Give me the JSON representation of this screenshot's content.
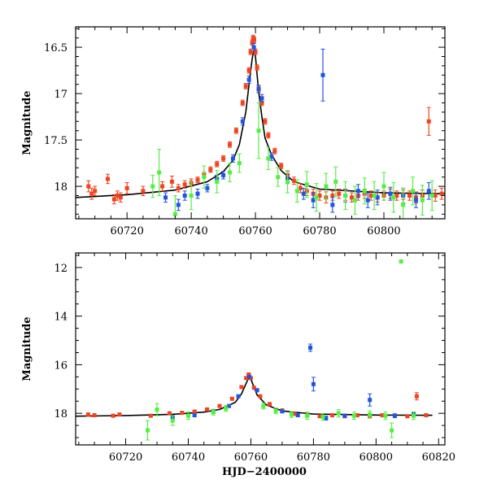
{
  "colors": {
    "blue": "#2255dd",
    "green": "#55ee44",
    "red": "#ee4422",
    "model": "#000000"
  },
  "chart_data": [
    {
      "type": "scatter",
      "title": "",
      "xlabel": "",
      "ylabel": "Magnitude",
      "xlim": [
        60704,
        60819
      ],
      "ylim": [
        18.35,
        16.28
      ],
      "y_inverted": true,
      "grid": false,
      "x_ticks": [
        60720,
        60740,
        60760,
        60780,
        60800
      ],
      "x_tick_labels": [
        "60720",
        "60740",
        "60760",
        "60780",
        "60800"
      ],
      "y_ticks": [
        16.5,
        17,
        17.5,
        18
      ],
      "y_tick_labels": [
        "16.5",
        "17",
        "17.5",
        "18"
      ],
      "model": {
        "x": [
          60704,
          60720,
          60735,
          60745,
          60750,
          60753,
          60755,
          60757,
          60758,
          60759,
          60759.6,
          60760,
          60761,
          60762,
          60763,
          60765,
          60768,
          60772,
          60780,
          60800,
          60819
        ],
        "y": [
          18.12,
          18.09,
          18.04,
          17.95,
          17.84,
          17.72,
          17.55,
          17.2,
          16.9,
          16.62,
          16.52,
          16.6,
          16.98,
          17.25,
          17.48,
          17.66,
          17.83,
          17.95,
          18.03,
          18.07,
          18.08
        ]
      },
      "series": [
        {
          "color": "#ee4422",
          "x": [
            60708,
            60709,
            60710,
            60714,
            60716,
            60717,
            60718,
            60720,
            60725,
            60731,
            60734,
            60736,
            60738,
            60740,
            60742,
            60744,
            60746,
            60748,
            60750,
            60752,
            60754,
            60756,
            60757,
            60758,
            60758.5,
            60759,
            60759.3,
            60759.6,
            60760,
            60760.5,
            60761,
            60762,
            60763,
            60764,
            60766,
            60768,
            60770,
            60772,
            60774,
            60776,
            60778,
            60780,
            60782,
            60784,
            60786,
            60788,
            60790,
            60792,
            60794,
            60796,
            60798,
            60800,
            60802,
            60804,
            60806,
            60808,
            60810,
            60812,
            60814,
            60816,
            60818
          ],
          "y": [
            18.0,
            18.08,
            18.05,
            17.92,
            18.14,
            18.1,
            18.12,
            18.02,
            18.05,
            18.0,
            17.95,
            18.02,
            17.98,
            17.96,
            17.93,
            17.88,
            17.82,
            17.76,
            17.7,
            17.55,
            17.4,
            17.1,
            16.92,
            16.75,
            16.55,
            16.45,
            16.4,
            16.42,
            16.55,
            16.72,
            16.95,
            17.1,
            17.3,
            17.45,
            17.62,
            17.78,
            17.88,
            17.94,
            18.02,
            18.05,
            18.08,
            18.1,
            18.12,
            18.1,
            18.08,
            18.1,
            18.12,
            18.1,
            18.08,
            18.1,
            18.12,
            18.1,
            18.08,
            18.1,
            18.09,
            18.1,
            18.12,
            18.1,
            17.3,
            18.1,
            18.08
          ],
          "err": [
            0.06,
            0.06,
            0.05,
            0.05,
            0.05,
            0.05,
            0.05,
            0.06,
            0.05,
            0.05,
            0.06,
            0.04,
            0.04,
            0.04,
            0.03,
            0.03,
            0.03,
            0.03,
            0.03,
            0.03,
            0.03,
            0.03,
            0.03,
            0.03,
            0.03,
            0.03,
            0.03,
            0.03,
            0.03,
            0.03,
            0.03,
            0.03,
            0.03,
            0.03,
            0.03,
            0.03,
            0.04,
            0.04,
            0.05,
            0.05,
            0.05,
            0.05,
            0.06,
            0.05,
            0.05,
            0.05,
            0.05,
            0.05,
            0.05,
            0.05,
            0.05,
            0.05,
            0.05,
            0.05,
            0.05,
            0.05,
            0.06,
            0.06,
            0.15,
            0.06,
            0.06
          ]
        },
        {
          "color": "#2255dd",
          "x": [
            60732,
            60736,
            60738,
            60742,
            60745,
            60748,
            60750,
            60753,
            60756,
            60758,
            60759.5,
            60761,
            60762,
            60765,
            60770,
            60775,
            60778,
            60781,
            60784,
            60788,
            60792,
            60795,
            60798,
            60802,
            60806,
            60810,
            60814
          ],
          "y": [
            18.12,
            18.2,
            18.1,
            18.08,
            18.02,
            17.92,
            17.88,
            17.7,
            17.3,
            16.85,
            16.5,
            16.95,
            17.05,
            17.68,
            17.92,
            18.08,
            18.15,
            16.8,
            18.2,
            18.1,
            18.05,
            18.15,
            18.12,
            18.08,
            18.1,
            18.15,
            18.05
          ],
          "err": [
            0.05,
            0.06,
            0.05,
            0.05,
            0.04,
            0.04,
            0.04,
            0.04,
            0.04,
            0.04,
            0.04,
            0.04,
            0.04,
            0.04,
            0.05,
            0.06,
            0.08,
            0.28,
            0.08,
            0.07,
            0.07,
            0.08,
            0.08,
            0.07,
            0.08,
            0.08,
            0.09
          ]
        },
        {
          "color": "#55ee44",
          "x": [
            60728,
            60730,
            60735,
            60740,
            60744,
            60748,
            60752,
            60755,
            60761,
            60764,
            60767,
            60770,
            60773,
            60776,
            60779,
            60782,
            60785,
            60788,
            60791,
            60794,
            60797,
            60800,
            60803,
            60806,
            60809,
            60812,
            60815
          ],
          "y": [
            18.0,
            17.85,
            18.3,
            18.1,
            17.9,
            17.95,
            17.85,
            17.75,
            17.4,
            17.7,
            17.9,
            17.95,
            18.05,
            17.98,
            18.12,
            18.0,
            17.95,
            18.1,
            18.15,
            18.05,
            18.1,
            18.0,
            18.12,
            18.2,
            18.05,
            18.15,
            18.1
          ],
          "err": [
            0.12,
            0.25,
            0.2,
            0.15,
            0.12,
            0.12,
            0.1,
            0.1,
            0.3,
            0.12,
            0.1,
            0.12,
            0.12,
            0.14,
            0.15,
            0.14,
            0.16,
            0.15,
            0.15,
            0.14,
            0.15,
            0.15,
            0.16,
            0.18,
            0.15,
            0.16,
            0.16
          ]
        }
      ]
    },
    {
      "type": "scatter",
      "title": "",
      "xlabel": "HJD−2400000",
      "ylabel": "Magnitude",
      "xlim": [
        60704,
        60822
      ],
      "ylim": [
        19.3,
        11.4
      ],
      "y_inverted": true,
      "grid": false,
      "x_ticks": [
        60720,
        60740,
        60760,
        60780,
        60800,
        60820
      ],
      "x_tick_labels": [
        "60720",
        "60740",
        "60760",
        "60780",
        "60800",
        "60820"
      ],
      "y_ticks": [
        12,
        14,
        16,
        18
      ],
      "y_tick_labels": [
        "12",
        "14",
        "16",
        "18"
      ],
      "model": {
        "x": [
          60704,
          60720,
          60735,
          60745,
          60750,
          60755,
          60757,
          60759,
          60759.6,
          60760,
          60762,
          60765,
          60770,
          60780,
          60800,
          60818
        ],
        "y": [
          18.12,
          18.09,
          18.04,
          17.95,
          17.84,
          17.55,
          17.2,
          16.62,
          16.52,
          16.6,
          17.25,
          17.66,
          17.9,
          18.03,
          18.07,
          18.08
        ]
      },
      "series": [
        {
          "color": "#ee4422",
          "x": [
            60708,
            60710,
            60716,
            60718,
            60728,
            60734,
            60738,
            60742,
            60746,
            60750,
            60754,
            60757,
            60758.5,
            60759.3,
            60760,
            60761,
            60763,
            60766,
            60770,
            60774,
            60778,
            60782,
            60786,
            60790,
            60794,
            60798,
            60802,
            60806,
            60810,
            60813,
            60816
          ],
          "y": [
            18.05,
            18.08,
            18.1,
            18.05,
            18.1,
            18.0,
            17.98,
            17.93,
            17.84,
            17.7,
            17.4,
            16.92,
            16.55,
            16.4,
            16.55,
            16.95,
            17.3,
            17.62,
            17.88,
            18.02,
            18.08,
            18.12,
            18.08,
            18.12,
            18.08,
            18.12,
            18.08,
            18.09,
            18.12,
            17.3,
            18.08
          ],
          "err": [
            0.06,
            0.05,
            0.05,
            0.05,
            0.05,
            0.06,
            0.04,
            0.03,
            0.03,
            0.03,
            0.03,
            0.03,
            0.03,
            0.03,
            0.03,
            0.03,
            0.03,
            0.03,
            0.04,
            0.05,
            0.05,
            0.06,
            0.05,
            0.05,
            0.05,
            0.05,
            0.05,
            0.05,
            0.06,
            0.15,
            0.06
          ]
        },
        {
          "color": "#2255dd",
          "x": [
            60735,
            60742,
            60748,
            60753,
            60756,
            60759.5,
            60762,
            60770,
            60775,
            60779,
            60780,
            60784,
            60790,
            60798,
            60806,
            60812
          ],
          "y": [
            18.15,
            18.08,
            17.92,
            17.7,
            17.3,
            16.5,
            17.05,
            17.92,
            18.08,
            15.3,
            16.8,
            18.2,
            18.1,
            17.45,
            18.1,
            18.05
          ],
          "err": [
            0.05,
            0.05,
            0.04,
            0.04,
            0.04,
            0.04,
            0.04,
            0.05,
            0.06,
            0.15,
            0.28,
            0.08,
            0.07,
            0.25,
            0.08,
            0.09
          ]
        },
        {
          "color": "#55ee44",
          "x": [
            60727,
            60730,
            60735,
            60740,
            60748,
            60752,
            60764,
            60768,
            60773,
            60778,
            60783,
            60788,
            60793,
            60798,
            60803,
            60805,
            60808,
            60812
          ],
          "y": [
            18.7,
            17.85,
            18.3,
            18.1,
            17.95,
            17.8,
            17.7,
            17.9,
            18.05,
            18.1,
            18.15,
            18.0,
            18.1,
            18.05,
            18.1,
            18.7,
            11.75,
            18.1
          ],
          "err": [
            0.4,
            0.25,
            0.2,
            0.15,
            0.12,
            0.12,
            0.12,
            0.12,
            0.12,
            0.15,
            0.14,
            0.15,
            0.15,
            0.15,
            0.16,
            0.3,
            0.0,
            0.16
          ]
        }
      ]
    }
  ]
}
